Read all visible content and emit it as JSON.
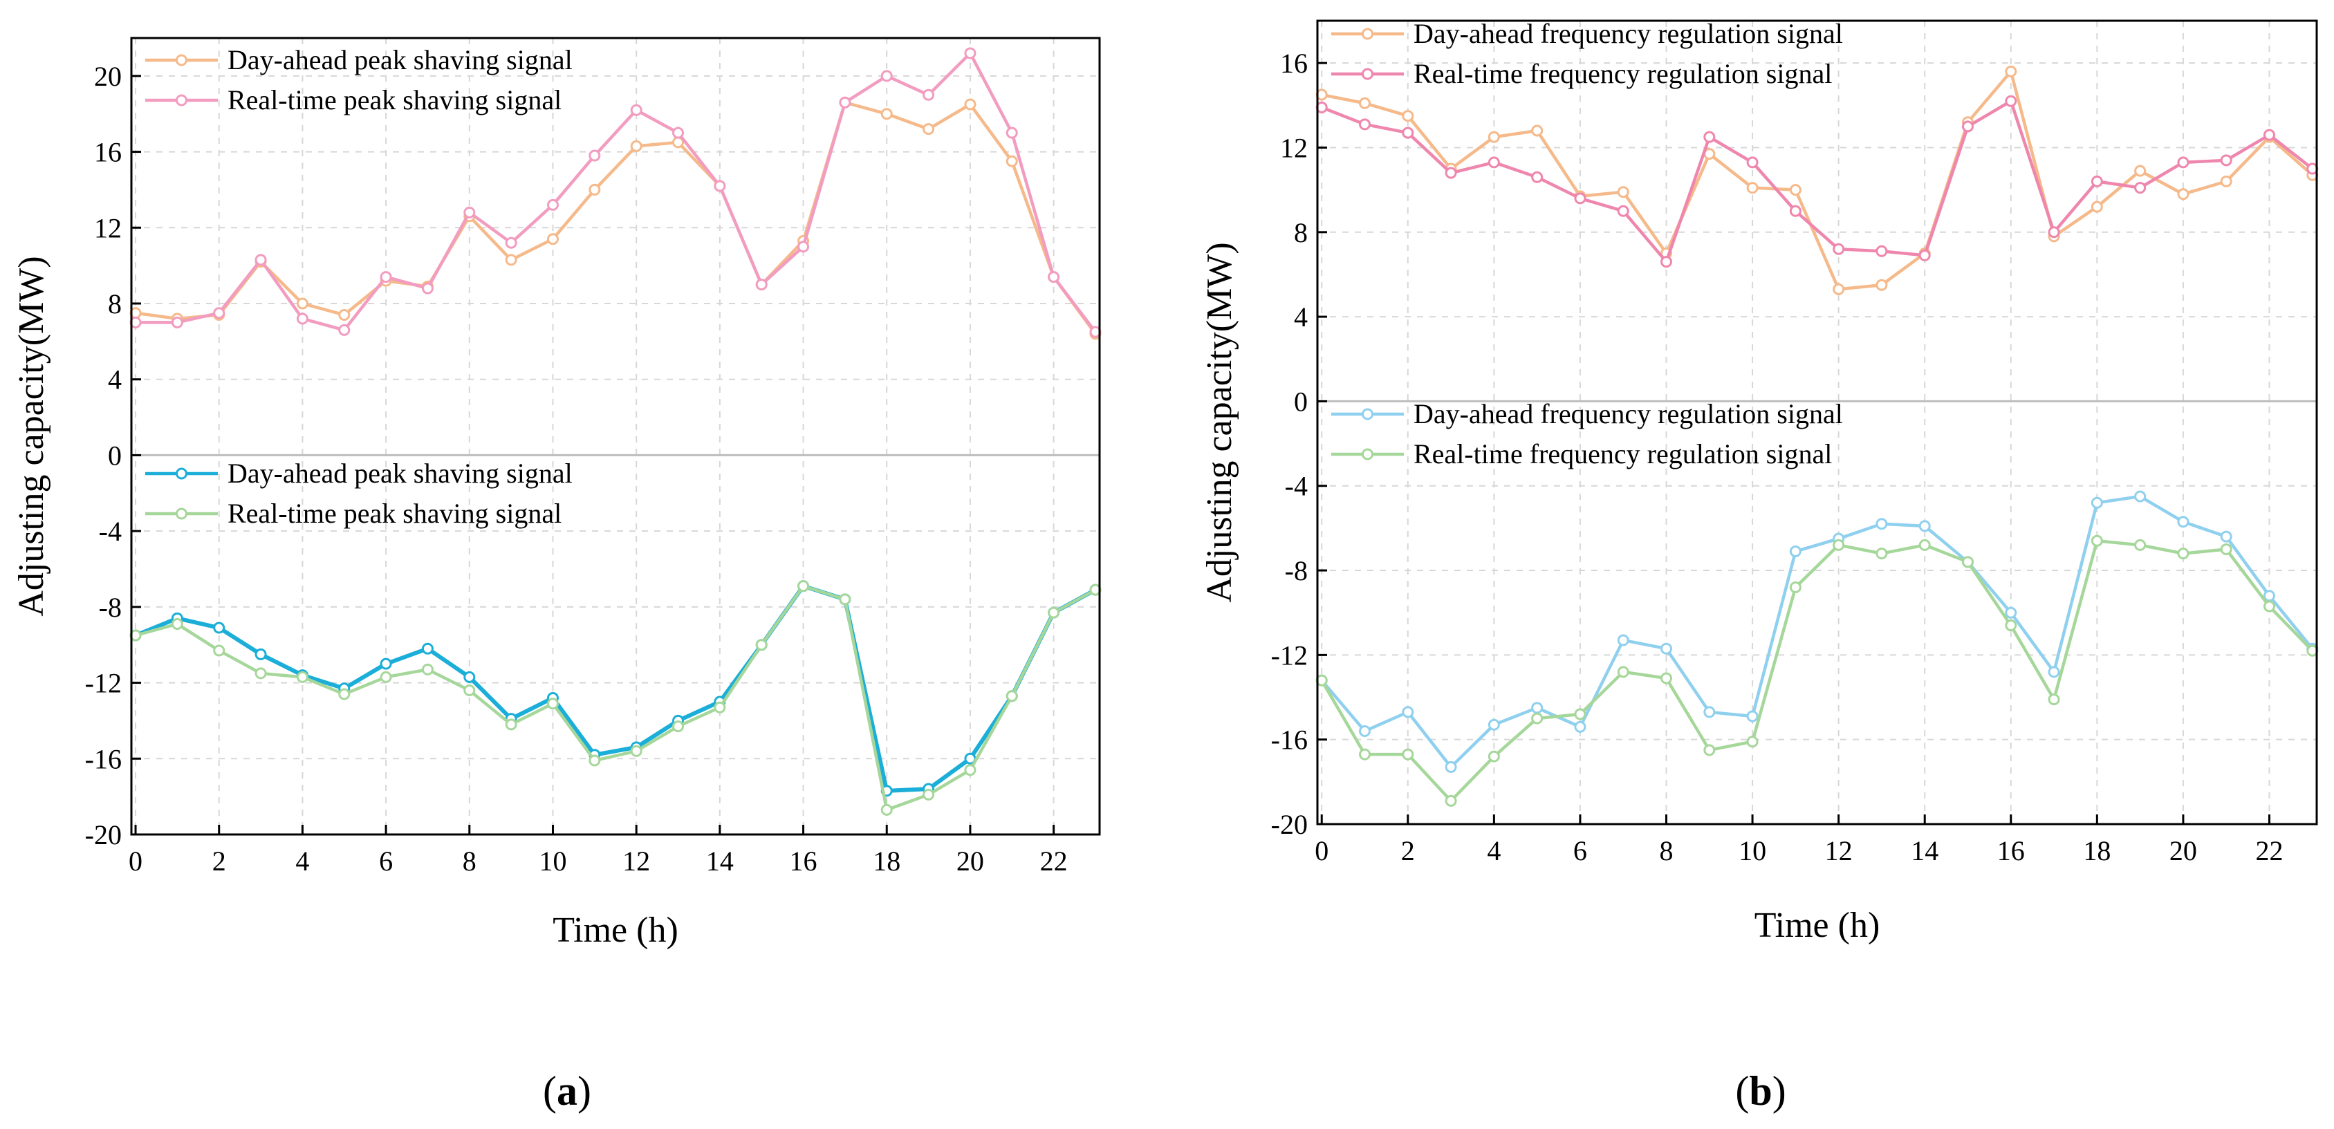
{
  "chart_data": [
    {
      "type": "line",
      "panel": "a",
      "panel_label": "a",
      "xlabel": "Time (h)",
      "ylabel": "Adjusting capacity(MW)",
      "xlim": [
        -0.1,
        23.1
      ],
      "ylim": [
        -20,
        22
      ],
      "xticks": [
        0,
        2,
        4,
        6,
        8,
        10,
        12,
        14,
        16,
        18,
        20,
        22
      ],
      "yticks": [
        -20,
        -16,
        -12,
        -8,
        -4,
        0,
        4,
        8,
        12,
        16,
        20
      ],
      "x": [
        0,
        1,
        2,
        3,
        4,
        5,
        6,
        7,
        8,
        9,
        10,
        11,
        12,
        13,
        14,
        15,
        16,
        17,
        18,
        19,
        20,
        21,
        22,
        23
      ],
      "legends": [
        {
          "position": "top-left",
          "entries": [
            "Day-ahead peak shaving signal",
            "Real-time peak shaving signal"
          ]
        },
        {
          "position": "middle-left",
          "entries": [
            "Day-ahead peak shaving signal",
            "Real-time peak shaving signal"
          ]
        }
      ],
      "series": [
        {
          "name": "Day-ahead peak shaving signal",
          "color": "#f5b98a",
          "values": [
            7.5,
            7.2,
            7.4,
            10.2,
            8.0,
            7.4,
            9.2,
            8.9,
            12.6,
            10.3,
            11.4,
            14.0,
            16.3,
            16.5,
            14.2,
            9.0,
            11.3,
            18.6,
            18.0,
            17.2,
            18.5,
            15.5,
            9.4,
            6.4
          ]
        },
        {
          "name": "Real-time peak shaving signal",
          "color": "#f29cc0",
          "values": [
            7.0,
            7.0,
            7.5,
            10.3,
            7.2,
            6.6,
            9.4,
            8.8,
            12.8,
            11.2,
            13.2,
            15.8,
            18.2,
            17.0,
            14.2,
            9.0,
            11.0,
            18.6,
            20.0,
            19.0,
            21.2,
            17.0,
            9.4,
            6.5
          ]
        },
        {
          "name": "Day-ahead peak shaving signal",
          "color": "#1aaed8",
          "values": [
            -9.5,
            -8.6,
            -9.1,
            -10.5,
            -11.6,
            -12.3,
            -11.0,
            -10.2,
            -11.7,
            -13.9,
            -12.8,
            -15.8,
            -15.4,
            -14.0,
            -13.0,
            -10.0,
            -6.9,
            -7.6,
            -17.7,
            -17.6,
            -16.0,
            -12.7,
            -8.3,
            -7.1
          ]
        },
        {
          "name": "Real-time peak shaving signal",
          "color": "#a6d79a",
          "values": [
            -9.5,
            -8.9,
            -10.3,
            -11.5,
            -11.7,
            -12.6,
            -11.7,
            -11.3,
            -12.4,
            -14.2,
            -13.1,
            -16.1,
            -15.6,
            -14.3,
            -13.3,
            -10.0,
            -6.9,
            -7.6,
            -18.7,
            -17.9,
            -16.6,
            -12.7,
            -8.3,
            -7.1
          ]
        }
      ]
    },
    {
      "type": "line",
      "panel": "b",
      "panel_label": "b",
      "xlabel": "Time (h)",
      "ylabel": "Adjusting capacity(MW)",
      "xlim": [
        -0.1,
        23.1
      ],
      "ylim": [
        -20,
        18
      ],
      "xticks": [
        0,
        2,
        4,
        6,
        8,
        10,
        12,
        14,
        16,
        18,
        20,
        22
      ],
      "yticks": [
        -20,
        -16,
        -12,
        -8,
        -4,
        0,
        4,
        8,
        12,
        16
      ],
      "x": [
        0,
        1,
        2,
        3,
        4,
        5,
        6,
        7,
        8,
        9,
        10,
        11,
        12,
        13,
        14,
        15,
        16,
        17,
        18,
        19,
        20,
        21,
        22,
        23
      ],
      "legends": [
        {
          "position": "top-left",
          "entries": [
            "Day-ahead frequency regulation signal",
            "Real-time frequency regulation signal"
          ]
        },
        {
          "position": "middle-left",
          "entries": [
            "Day-ahead frequency regulation signal",
            "Real-time frequency regulation signal"
          ]
        }
      ],
      "series": [
        {
          "name": "Day-ahead frequency regulation signal",
          "color": "#f5b98a",
          "values": [
            14.5,
            14.1,
            13.5,
            11.0,
            12.5,
            12.8,
            9.7,
            9.9,
            7.0,
            11.7,
            10.1,
            10.0,
            5.3,
            5.5,
            7.0,
            13.2,
            15.6,
            7.8,
            9.2,
            10.9,
            9.8,
            10.4,
            12.5,
            10.7
          ]
        },
        {
          "name": "Real-time frequency regulation signal",
          "color": "#ef86ad",
          "values": [
            13.9,
            13.1,
            12.7,
            10.8,
            11.3,
            10.6,
            9.6,
            9.0,
            6.6,
            12.5,
            11.3,
            9.0,
            7.2,
            7.1,
            6.9,
            13.0,
            14.2,
            8.0,
            10.4,
            10.1,
            11.3,
            11.4,
            12.6,
            11.0
          ]
        },
        {
          "name": "Day-ahead frequency regulation signal",
          "color": "#8fd0ef",
          "values": [
            -13.2,
            -15.6,
            -14.7,
            -17.3,
            -15.3,
            -14.5,
            -15.4,
            -11.3,
            -11.7,
            -14.7,
            -14.9,
            -7.1,
            -6.5,
            -5.8,
            -5.9,
            -7.6,
            -10.0,
            -12.8,
            -4.8,
            -4.5,
            -5.7,
            -6.4,
            -9.2,
            -11.7
          ]
        },
        {
          "name": "Real-time frequency regulation signal",
          "color": "#a6d79a",
          "values": [
            -13.2,
            -16.7,
            -16.7,
            -18.9,
            -16.8,
            -15.0,
            -14.8,
            -12.8,
            -13.1,
            -16.5,
            -16.1,
            -8.8,
            -6.8,
            -7.2,
            -6.8,
            -7.6,
            -10.6,
            -14.1,
            -6.6,
            -6.8,
            -7.2,
            -7.0,
            -9.7,
            -11.8
          ]
        }
      ]
    }
  ]
}
